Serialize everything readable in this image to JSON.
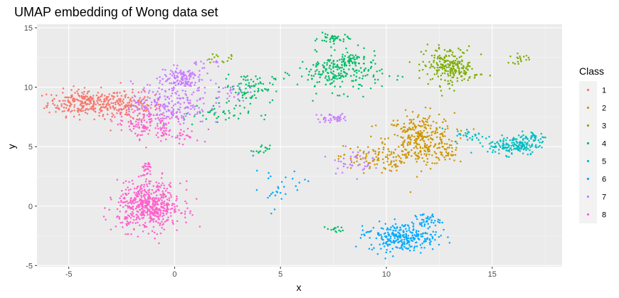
{
  "chart_data": {
    "type": "scatter",
    "title": "UMAP embedding of Wong data set",
    "xlabel": "x",
    "ylabel": "y",
    "xlim": [
      -6.5,
      18.3
    ],
    "ylim": [
      -5.1,
      15.3
    ],
    "x_ticks": [
      -5,
      0,
      5,
      10,
      15
    ],
    "x_tick_labels": [
      "-5",
      "0",
      "5",
      "10",
      "15"
    ],
    "y_ticks": [
      -5,
      0,
      5,
      10,
      15
    ],
    "y_tick_labels": [
      "-5",
      "0",
      "5",
      "10",
      "15"
    ],
    "grid": true,
    "legend": {
      "title": "Class",
      "placement": "right"
    },
    "series": [
      {
        "name": "1",
        "color": "#F8766D",
        "clusters": [
          {
            "cx": -4.2,
            "cy": 8.7,
            "sx": 0.9,
            "sy": 0.55,
            "n": 260
          },
          {
            "cx": -2.2,
            "cy": 8.4,
            "sx": 0.8,
            "sy": 0.6,
            "n": 150
          }
        ]
      },
      {
        "name": "2",
        "color": "#CD9600",
        "clusters": [
          {
            "cx": 11.6,
            "cy": 5.6,
            "sx": 0.8,
            "sy": 1.1,
            "n": 330
          },
          {
            "cx": 9.3,
            "cy": 4.0,
            "sx": 0.8,
            "sy": 0.55,
            "n": 90
          },
          {
            "cx": 12.8,
            "cy": 4.4,
            "sx": 0.35,
            "sy": 0.5,
            "n": 30
          }
        ]
      },
      {
        "name": "3",
        "color": "#7CAE00",
        "clusters": [
          {
            "cx": 12.9,
            "cy": 11.8,
            "sx": 0.6,
            "sy": 0.8,
            "n": 180
          },
          {
            "cx": 13.6,
            "cy": 11.4,
            "sx": 0.5,
            "sy": 0.4,
            "n": 50
          },
          {
            "cx": 16.3,
            "cy": 12.4,
            "sx": 0.25,
            "sy": 0.2,
            "n": 18
          },
          {
            "cx": 2.1,
            "cy": 12.4,
            "sx": 0.5,
            "sy": 0.2,
            "n": 14
          }
        ]
      },
      {
        "name": "4",
        "color": "#00BE67",
        "clusters": [
          {
            "cx": 7.8,
            "cy": 11.2,
            "sx": 1.0,
            "sy": 0.8,
            "n": 220
          },
          {
            "cx": 7.5,
            "cy": 14.1,
            "sx": 0.35,
            "sy": 0.2,
            "n": 40
          },
          {
            "cx": 8.3,
            "cy": 12.4,
            "sx": 0.3,
            "sy": 0.2,
            "n": 40
          },
          {
            "cx": 3.5,
            "cy": 10.0,
            "sx": 0.6,
            "sy": 0.6,
            "n": 80
          },
          {
            "cx": 2.0,
            "cy": 7.8,
            "sx": 0.8,
            "sy": 0.5,
            "n": 45
          },
          {
            "cx": 4.1,
            "cy": 4.7,
            "sx": 0.2,
            "sy": 0.2,
            "n": 15
          },
          {
            "cx": 7.6,
            "cy": -2.0,
            "sx": 0.2,
            "sy": 0.15,
            "n": 15
          }
        ]
      },
      {
        "name": "5",
        "color": "#00BFC4",
        "clusters": [
          {
            "cx": 16.0,
            "cy": 5.1,
            "sx": 0.6,
            "sy": 0.4,
            "n": 160
          },
          {
            "cx": 17.0,
            "cy": 5.7,
            "sx": 0.3,
            "sy": 0.3,
            "n": 40
          },
          {
            "cx": 14.0,
            "cy": 5.9,
            "sx": 0.4,
            "sy": 0.3,
            "n": 30
          }
        ]
      },
      {
        "name": "6",
        "color": "#00A9FF",
        "clusters": [
          {
            "cx": 10.8,
            "cy": -2.6,
            "sx": 0.8,
            "sy": 0.6,
            "n": 260
          },
          {
            "cx": 11.9,
            "cy": -1.2,
            "sx": 0.3,
            "sy": 0.3,
            "n": 40
          },
          {
            "cx": 4.5,
            "cy": 1.4,
            "sx": 0.4,
            "sy": 0.8,
            "n": 20
          },
          {
            "cx": 5.9,
            "cy": 2.0,
            "sx": 0.4,
            "sy": 0.4,
            "n": 10
          },
          {
            "cx": 9.2,
            "cy": -2.4,
            "sx": 0.3,
            "sy": 0.2,
            "n": 10
          }
        ]
      },
      {
        "name": "7",
        "color": "#C77CFF",
        "clusters": [
          {
            "cx": 0.3,
            "cy": 10.8,
            "sx": 0.5,
            "sy": 0.5,
            "n": 120
          },
          {
            "cx": -0.2,
            "cy": 8.6,
            "sx": 0.9,
            "sy": 0.9,
            "n": 220
          },
          {
            "cx": 7.5,
            "cy": 7.4,
            "sx": 0.4,
            "sy": 0.2,
            "n": 40
          },
          {
            "cx": 8.3,
            "cy": 3.8,
            "sx": 0.5,
            "sy": 0.5,
            "n": 40
          },
          {
            "cx": 2.6,
            "cy": 9.6,
            "sx": 0.4,
            "sy": 0.4,
            "n": 25
          },
          {
            "cx": 1.4,
            "cy": 12.0,
            "sx": 0.4,
            "sy": 0.2,
            "n": 15
          }
        ]
      },
      {
        "name": "8",
        "color": "#FF61CC",
        "clusters": [
          {
            "cx": -1.2,
            "cy": 0.0,
            "sx": 0.75,
            "sy": 1.0,
            "n": 560
          },
          {
            "cx": -1.3,
            "cy": 3.1,
            "sx": 0.15,
            "sy": 0.35,
            "n": 25
          },
          {
            "cx": -1.4,
            "cy": 7.0,
            "sx": 0.7,
            "sy": 0.6,
            "n": 110
          },
          {
            "cx": 0.0,
            "cy": 6.0,
            "sx": 0.6,
            "sy": 0.4,
            "n": 50
          }
        ]
      }
    ]
  }
}
